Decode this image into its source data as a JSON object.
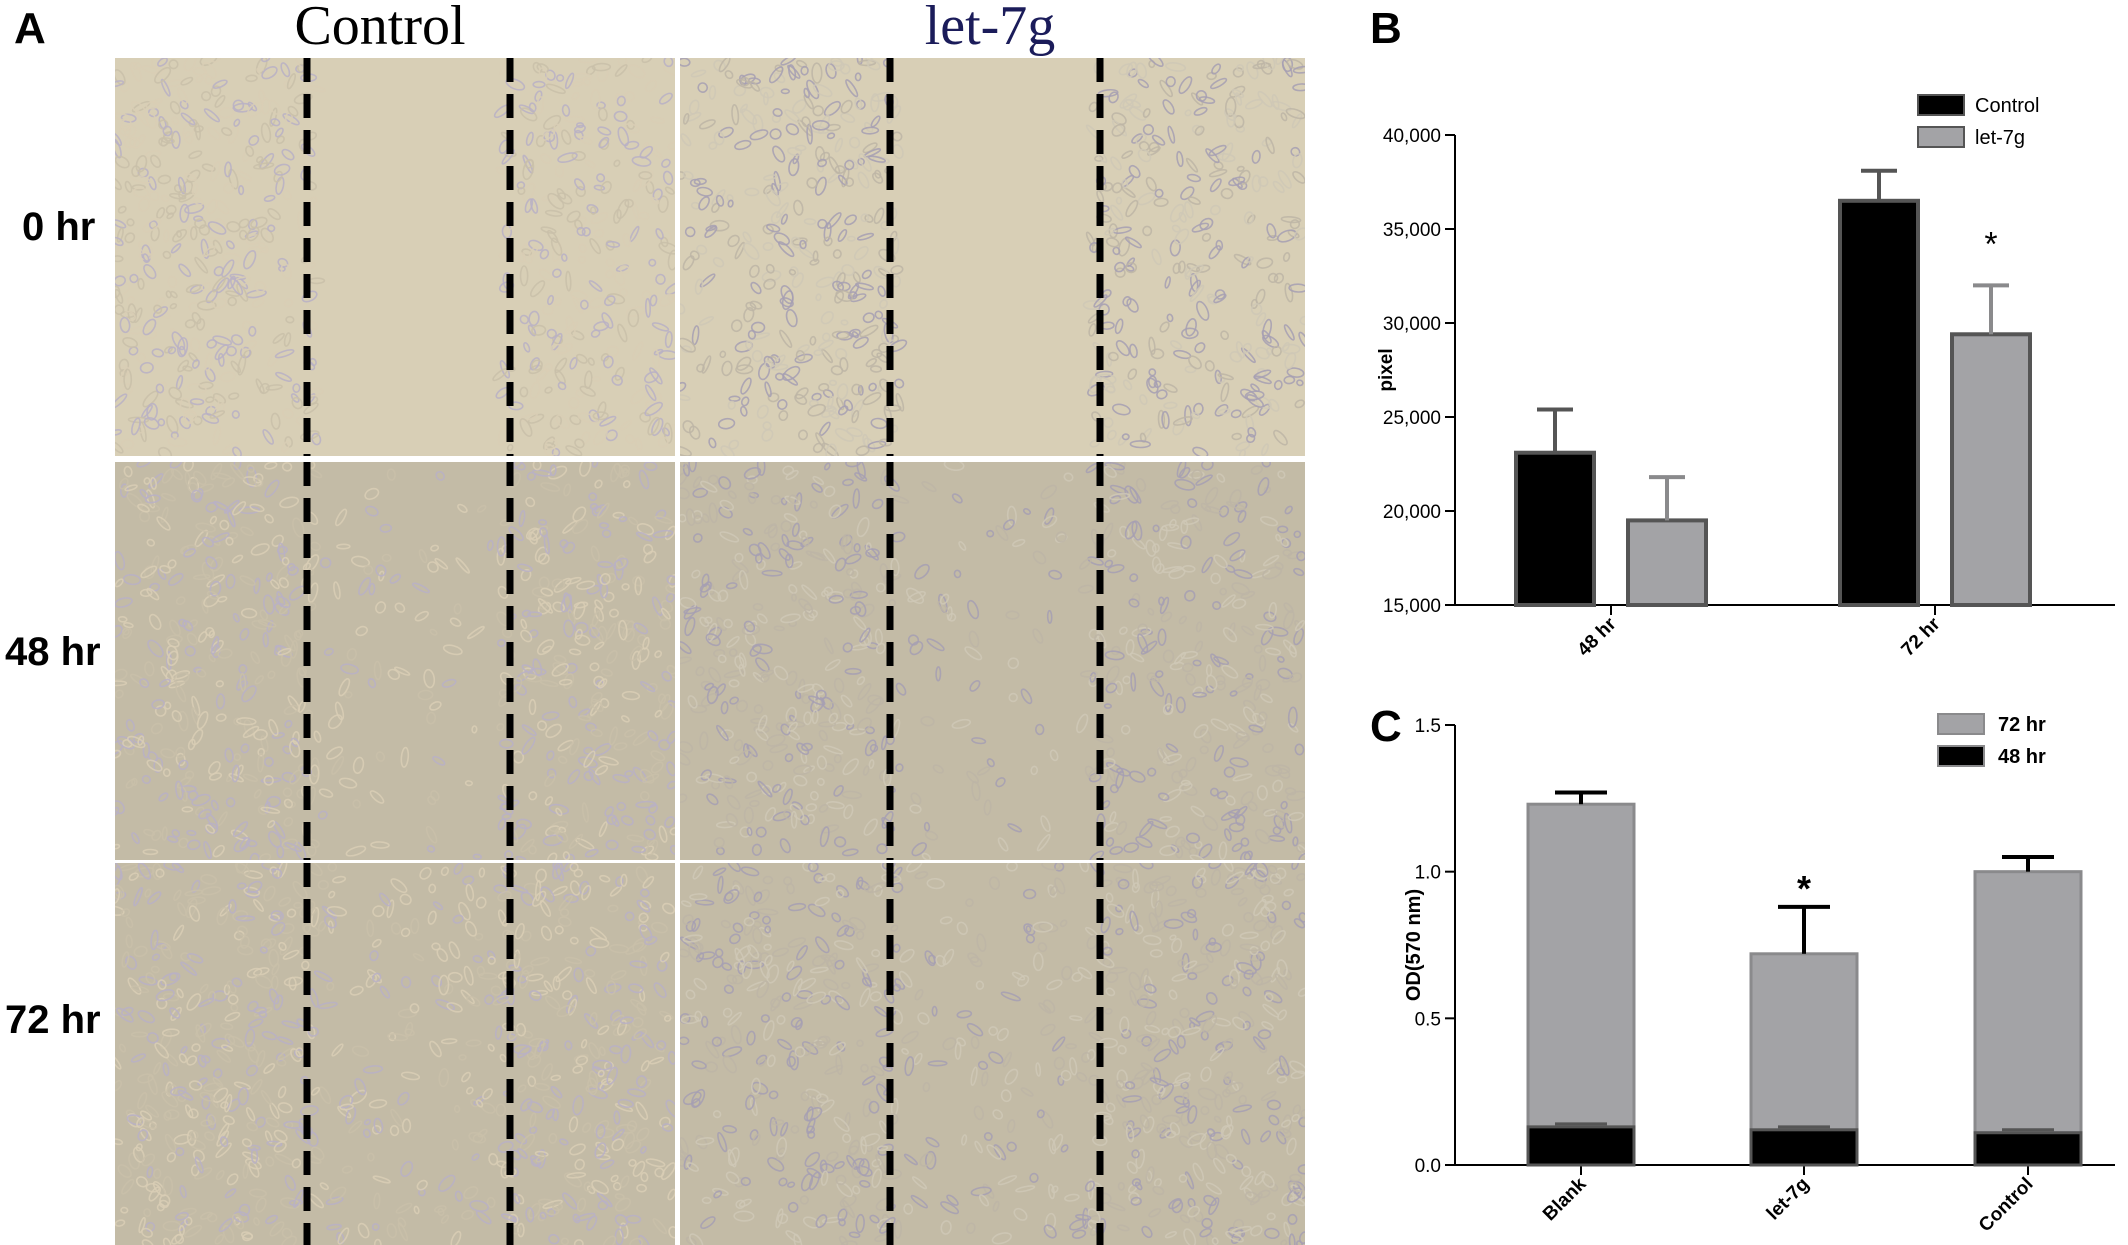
{
  "panel_a": {
    "letter": "A",
    "columns": [
      "Control",
      "let-7g"
    ],
    "column_colors": [
      "#000000",
      "#1b1c5a"
    ],
    "rows": [
      "0 hr",
      "48 hr",
      "72 hr"
    ]
  },
  "panel_b": {
    "letter": "B",
    "chart_data": {
      "type": "bar",
      "categories": [
        "48 hr",
        "72 hr"
      ],
      "series": [
        {
          "name": "Control",
          "color": "#000000",
          "values": [
            23100,
            36500
          ],
          "errors": [
            2300,
            1600
          ]
        },
        {
          "name": "let-7g",
          "color": "#a3a3a6",
          "values": [
            19500,
            29400
          ],
          "errors": [
            2300,
            2600
          ]
        }
      ],
      "ylabel": "pixel",
      "ylim": [
        15000,
        40000
      ],
      "yticks": [
        15000,
        20000,
        25000,
        30000,
        35000,
        40000
      ],
      "ytick_labels": [
        "15,000",
        "20,000",
        "25,000",
        "30,000",
        "35,000",
        "40,000"
      ],
      "annotations": [
        {
          "category": "72 hr",
          "series": "let-7g",
          "text": "*"
        }
      ],
      "legend": "top-right"
    }
  },
  "panel_c": {
    "letter": "C",
    "chart_data": {
      "type": "bar",
      "stacked": true,
      "categories": [
        "Blank",
        "let-7g",
        "Control"
      ],
      "series": [
        {
          "name": "48 hr",
          "color": "#000000",
          "values": [
            0.13,
            0.12,
            0.11
          ],
          "errors": [
            0.01,
            0.01,
            0.01
          ]
        },
        {
          "name": "72 hr",
          "color": "#a3a3a6",
          "values": [
            1.23,
            0.72,
            1.0
          ],
          "errors": [
            0.04,
            0.16,
            0.05
          ]
        }
      ],
      "legend_order": [
        "72 hr",
        "48 hr"
      ],
      "ylabel": "OD(570 nm)",
      "ylim": [
        0,
        1.5
      ],
      "yticks": [
        0,
        0.5,
        1.0,
        1.5
      ],
      "ytick_labels": [
        "0.0",
        "0.5",
        "1.0",
        "1.5"
      ],
      "annotations": [
        {
          "category": "let-7g",
          "series": "72 hr",
          "text": "*"
        }
      ],
      "legend": "top-right"
    }
  }
}
